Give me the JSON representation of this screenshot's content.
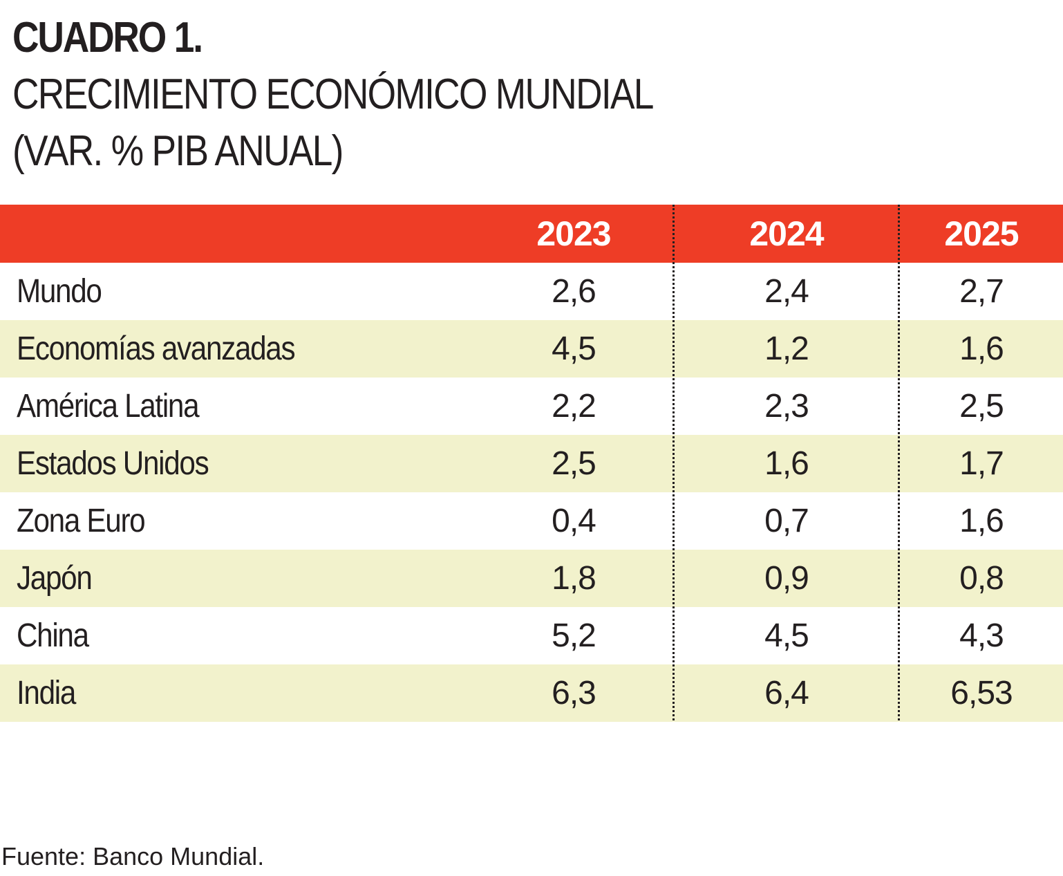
{
  "title": {
    "line1": "CUADRO 1.",
    "line2": "CRECIMIENTO ECONÓMICO MUNDIAL",
    "line3": "(VAR. % PIB ANUAL)"
  },
  "colors": {
    "header_bg": "#ee3d26",
    "stripe_bg": "#f2f2cc",
    "white_bg": "#ffffff",
    "text": "#231f20"
  },
  "table": {
    "headers": [
      "2023",
      "2024",
      "2025"
    ],
    "rows": [
      {
        "label": "Mundo",
        "values": [
          "2,6",
          "2,4",
          "2,7"
        ]
      },
      {
        "label": "Economías avanzadas",
        "values": [
          "4,5",
          "1,2",
          "1,6"
        ]
      },
      {
        "label": "América Latina",
        "values": [
          "2,2",
          "2,3",
          "2,5"
        ]
      },
      {
        "label": "Estados Unidos",
        "values": [
          "2,5",
          "1,6",
          "1,7"
        ]
      },
      {
        "label": "Zona Euro",
        "values": [
          "0,4",
          "0,7",
          "1,6"
        ]
      },
      {
        "label": "Japón",
        "values": [
          "1,8",
          "0,9",
          "0,8"
        ]
      },
      {
        "label": "China",
        "values": [
          "5,2",
          "4,5",
          "4,3"
        ]
      },
      {
        "label": "India",
        "values": [
          "6,3",
          "6,4",
          "6,53"
        ]
      }
    ]
  },
  "source": "Fuente: Banco Mundial."
}
